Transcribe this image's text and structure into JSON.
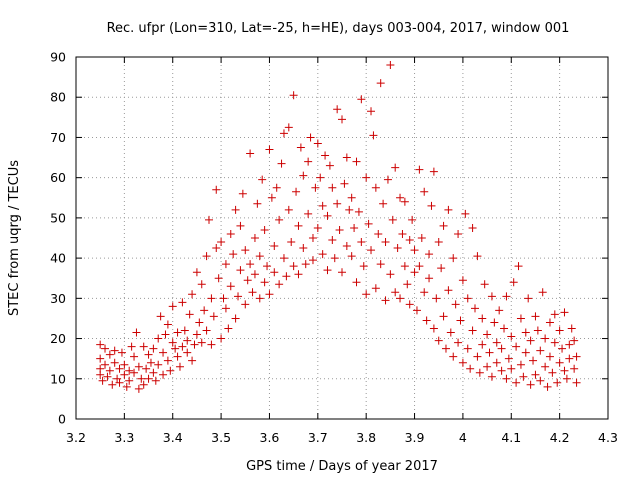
{
  "chart_data": {
    "type": "scatter",
    "title": "Rec. ufpr (Lon=310, Lat=-25, h=HE), days 003-004, 2017, window 001",
    "xlabel": "GPS time / Days of year 2017",
    "ylabel": "STEC from uqrg / TECUs",
    "xlim": [
      3.2,
      4.3
    ],
    "ylim": [
      0,
      90
    ],
    "x_ticks": [
      "3.2",
      "3.3",
      "3.4",
      "3.5",
      "3.6",
      "3.7",
      "3.8",
      "3.9",
      "4",
      "4.1",
      "4.2",
      "4.3"
    ],
    "y_ticks": [
      "0",
      "10",
      "20",
      "30",
      "40",
      "50",
      "60",
      "70",
      "80",
      "90"
    ],
    "grid": true,
    "marker": "+",
    "color": "#cc0000",
    "series": [
      {
        "points": [
          [
            3.25,
            18.5
          ],
          [
            3.25,
            15.0
          ],
          [
            3.25,
            12.5
          ],
          [
            3.25,
            11.0
          ],
          [
            3.255,
            9.5
          ],
          [
            3.26,
            17.5
          ],
          [
            3.26,
            13.5
          ],
          [
            3.265,
            10.5
          ],
          [
            3.27,
            16.0
          ],
          [
            3.27,
            12.0
          ],
          [
            3.275,
            8.5
          ],
          [
            3.28,
            17.0
          ],
          [
            3.28,
            14.0
          ],
          [
            3.285,
            10.0
          ],
          [
            3.29,
            12.5
          ],
          [
            3.29,
            9.0
          ],
          [
            3.295,
            16.5
          ],
          [
            3.3,
            11.0
          ],
          [
            3.3,
            13.5
          ],
          [
            3.305,
            8.0
          ],
          [
            3.31,
            12.0
          ],
          [
            3.31,
            9.5
          ],
          [
            3.315,
            18.0
          ],
          [
            3.32,
            15.5
          ],
          [
            3.32,
            11.5
          ],
          [
            3.325,
            21.5
          ],
          [
            3.33,
            7.5
          ],
          [
            3.33,
            13.0
          ],
          [
            3.335,
            10.0
          ],
          [
            3.34,
            18.0
          ],
          [
            3.34,
            8.5
          ],
          [
            3.345,
            12.5
          ],
          [
            3.35,
            16.0
          ],
          [
            3.35,
            10.0
          ],
          [
            3.355,
            14.0
          ],
          [
            3.36,
            17.5
          ],
          [
            3.36,
            11.5
          ],
          [
            3.365,
            9.5
          ],
          [
            3.37,
            20.0
          ],
          [
            3.37,
            13.5
          ],
          [
            3.375,
            25.5
          ],
          [
            3.38,
            11.0
          ],
          [
            3.38,
            16.5
          ],
          [
            3.385,
            21.0
          ],
          [
            3.39,
            14.5
          ],
          [
            3.39,
            23.5
          ],
          [
            3.395,
            12.0
          ],
          [
            3.4,
            19.0
          ],
          [
            3.4,
            28.0
          ],
          [
            3.405,
            17.5
          ],
          [
            3.41,
            15.5
          ],
          [
            3.41,
            21.5
          ],
          [
            3.415,
            13.0
          ],
          [
            3.42,
            18.0
          ],
          [
            3.42,
            29.0
          ],
          [
            3.425,
            22.0
          ],
          [
            3.43,
            16.5
          ],
          [
            3.43,
            19.5
          ],
          [
            3.435,
            26.0
          ],
          [
            3.44,
            14.5
          ],
          [
            3.44,
            31.0
          ],
          [
            3.445,
            18.5
          ],
          [
            3.45,
            36.5
          ],
          [
            3.45,
            21.0
          ],
          [
            3.455,
            24.0
          ],
          [
            3.46,
            19.0
          ],
          [
            3.46,
            33.5
          ],
          [
            3.465,
            27.0
          ],
          [
            3.47,
            40.5
          ],
          [
            3.47,
            22.0
          ],
          [
            3.475,
            49.5
          ],
          [
            3.48,
            18.5
          ],
          [
            3.48,
            30.0
          ],
          [
            3.485,
            25.5
          ],
          [
            3.49,
            57.0
          ],
          [
            3.49,
            42.5
          ],
          [
            3.495,
            35.0
          ],
          [
            3.5,
            20.0
          ],
          [
            3.5,
            44.0
          ],
          [
            3.505,
            30.0
          ],
          [
            3.51,
            27.5
          ],
          [
            3.51,
            38.5
          ],
          [
            3.515,
            22.5
          ],
          [
            3.52,
            46.0
          ],
          [
            3.52,
            33.0
          ],
          [
            3.525,
            41.0
          ],
          [
            3.53,
            25.0
          ],
          [
            3.53,
            52.0
          ],
          [
            3.535,
            30.5
          ],
          [
            3.54,
            48.0
          ],
          [
            3.54,
            37.0
          ],
          [
            3.545,
            56.0
          ],
          [
            3.55,
            28.5
          ],
          [
            3.55,
            42.0
          ],
          [
            3.555,
            34.5
          ],
          [
            3.56,
            66.0
          ],
          [
            3.56,
            38.5
          ],
          [
            3.565,
            31.5
          ],
          [
            3.57,
            45.0
          ],
          [
            3.57,
            36.0
          ],
          [
            3.575,
            53.5
          ],
          [
            3.58,
            30.0
          ],
          [
            3.58,
            40.5
          ],
          [
            3.585,
            59.5
          ],
          [
            3.59,
            34.0
          ],
          [
            3.59,
            47.0
          ],
          [
            3.595,
            38.0
          ],
          [
            3.6,
            67.0
          ],
          [
            3.6,
            31.0
          ],
          [
            3.605,
            55.0
          ],
          [
            3.61,
            43.0
          ],
          [
            3.61,
            36.5
          ],
          [
            3.615,
            57.5
          ],
          [
            3.62,
            33.5
          ],
          [
            3.62,
            49.5
          ],
          [
            3.625,
            63.5
          ],
          [
            3.63,
            40.0
          ],
          [
            3.63,
            71.0
          ],
          [
            3.635,
            35.5
          ],
          [
            3.64,
            52.0
          ],
          [
            3.64,
            72.5
          ],
          [
            3.645,
            44.0
          ],
          [
            3.65,
            38.0
          ],
          [
            3.65,
            80.5
          ],
          [
            3.655,
            56.5
          ],
          [
            3.66,
            36.0
          ],
          [
            3.66,
            48.0
          ],
          [
            3.665,
            67.5
          ],
          [
            3.67,
            42.5
          ],
          [
            3.67,
            60.5
          ],
          [
            3.675,
            38.5
          ],
          [
            3.68,
            64.0
          ],
          [
            3.68,
            51.0
          ],
          [
            3.685,
            70.0
          ],
          [
            3.69,
            45.0
          ],
          [
            3.69,
            39.5
          ],
          [
            3.695,
            57.5
          ],
          [
            3.7,
            68.5
          ],
          [
            3.7,
            47.5
          ],
          [
            3.705,
            60.0
          ],
          [
            3.71,
            41.0
          ],
          [
            3.71,
            53.0
          ],
          [
            3.715,
            65.5
          ],
          [
            3.72,
            37.0
          ],
          [
            3.72,
            50.5
          ],
          [
            3.725,
            63.0
          ],
          [
            3.73,
            44.5
          ],
          [
            3.73,
            57.5
          ],
          [
            3.735,
            40.0
          ],
          [
            3.74,
            77.0
          ],
          [
            3.74,
            53.5
          ],
          [
            3.745,
            47.0
          ],
          [
            3.75,
            36.5
          ],
          [
            3.75,
            74.5
          ],
          [
            3.755,
            58.5
          ],
          [
            3.76,
            43.0
          ],
          [
            3.76,
            65.0
          ],
          [
            3.765,
            52.0
          ],
          [
            3.77,
            40.5
          ],
          [
            3.77,
            55.0
          ],
          [
            3.775,
            47.5
          ],
          [
            3.78,
            64.0
          ],
          [
            3.78,
            34.0
          ],
          [
            3.785,
            51.5
          ],
          [
            3.79,
            44.0
          ],
          [
            3.79,
            79.5
          ],
          [
            3.795,
            38.0
          ],
          [
            3.8,
            60.0
          ],
          [
            3.8,
            31.0
          ],
          [
            3.805,
            48.5
          ],
          [
            3.81,
            76.5
          ],
          [
            3.81,
            42.0
          ],
          [
            3.815,
            70.5
          ],
          [
            3.82,
            57.5
          ],
          [
            3.82,
            32.5
          ],
          [
            3.825,
            46.0
          ],
          [
            3.83,
            38.5
          ],
          [
            3.83,
            83.5
          ],
          [
            3.835,
            53.5
          ],
          [
            3.84,
            29.5
          ],
          [
            3.84,
            44.0
          ],
          [
            3.845,
            59.5
          ],
          [
            3.85,
            88.0
          ],
          [
            3.85,
            36.0
          ],
          [
            3.855,
            49.5
          ],
          [
            3.86,
            31.5
          ],
          [
            3.86,
            62.5
          ],
          [
            3.865,
            42.5
          ],
          [
            3.87,
            55.0
          ],
          [
            3.87,
            30.0
          ],
          [
            3.875,
            46.0
          ],
          [
            3.88,
            38.0
          ],
          [
            3.88,
            54.0
          ],
          [
            3.885,
            33.5
          ],
          [
            3.89,
            44.5
          ],
          [
            3.89,
            28.5
          ],
          [
            3.895,
            49.5
          ],
          [
            3.9,
            36.5
          ],
          [
            3.9,
            42.0
          ],
          [
            3.905,
            27.0
          ],
          [
            3.91,
            62.0
          ],
          [
            3.91,
            38.0
          ],
          [
            3.915,
            45.0
          ],
          [
            3.92,
            31.5
          ],
          [
            3.92,
            56.5
          ],
          [
            3.925,
            24.5
          ],
          [
            3.93,
            41.0
          ],
          [
            3.93,
            35.0
          ],
          [
            3.935,
            53.0
          ],
          [
            3.94,
            22.5
          ],
          [
            3.94,
            61.5
          ],
          [
            3.945,
            30.0
          ],
          [
            3.95,
            44.0
          ],
          [
            3.95,
            19.5
          ],
          [
            3.955,
            37.5
          ],
          [
            3.96,
            25.5
          ],
          [
            3.96,
            48.0
          ],
          [
            3.965,
            17.5
          ],
          [
            3.97,
            32.0
          ],
          [
            3.97,
            52.0
          ],
          [
            3.975,
            21.5
          ],
          [
            3.98,
            40.0
          ],
          [
            3.98,
            15.5
          ],
          [
            3.985,
            28.5
          ],
          [
            3.99,
            19.0
          ],
          [
            3.99,
            46.0
          ],
          [
            3.995,
            24.5
          ],
          [
            4.0,
            14.0
          ],
          [
            4.0,
            34.5
          ],
          [
            4.005,
            51.0
          ],
          [
            4.01,
            17.5
          ],
          [
            4.01,
            30.0
          ],
          [
            4.015,
            12.5
          ],
          [
            4.02,
            47.5
          ],
          [
            4.02,
            22.0
          ],
          [
            4.025,
            27.5
          ],
          [
            4.03,
            15.5
          ],
          [
            4.03,
            40.5
          ],
          [
            4.035,
            11.5
          ],
          [
            4.04,
            25.0
          ],
          [
            4.04,
            18.5
          ],
          [
            4.045,
            33.5
          ],
          [
            4.05,
            13.0
          ],
          [
            4.05,
            21.0
          ],
          [
            4.055,
            16.5
          ],
          [
            4.06,
            30.5
          ],
          [
            4.06,
            10.5
          ],
          [
            4.065,
            24.0
          ],
          [
            4.07,
            19.0
          ],
          [
            4.07,
            14.0
          ],
          [
            4.075,
            27.0
          ],
          [
            4.08,
            12.0
          ],
          [
            4.08,
            17.5
          ],
          [
            4.085,
            22.5
          ],
          [
            4.09,
            10.0
          ],
          [
            4.09,
            30.5
          ],
          [
            4.095,
            15.0
          ],
          [
            4.1,
            20.5
          ],
          [
            4.1,
            12.5
          ],
          [
            4.105,
            34.0
          ],
          [
            4.11,
            9.0
          ],
          [
            4.11,
            18.0
          ],
          [
            4.115,
            38.0
          ],
          [
            4.12,
            13.5
          ],
          [
            4.12,
            25.0
          ],
          [
            4.125,
            10.5
          ],
          [
            4.13,
            21.5
          ],
          [
            4.13,
            16.5
          ],
          [
            4.135,
            30.0
          ],
          [
            4.14,
            8.5
          ],
          [
            4.14,
            19.5
          ],
          [
            4.145,
            14.5
          ],
          [
            4.15,
            25.5
          ],
          [
            4.15,
            11.0
          ],
          [
            4.155,
            22.0
          ],
          [
            4.16,
            17.0
          ],
          [
            4.16,
            9.5
          ],
          [
            4.165,
            31.5
          ],
          [
            4.17,
            13.0
          ],
          [
            4.17,
            20.0
          ],
          [
            4.175,
            8.0
          ],
          [
            4.18,
            24.0
          ],
          [
            4.18,
            15.5
          ],
          [
            4.185,
            11.5
          ],
          [
            4.19,
            19.0
          ],
          [
            4.19,
            26.0
          ],
          [
            4.195,
            9.0
          ],
          [
            4.2,
            14.0
          ],
          [
            4.2,
            22.0
          ],
          [
            4.205,
            17.5
          ],
          [
            4.21,
            12.0
          ],
          [
            4.21,
            26.5
          ],
          [
            4.215,
            10.0
          ],
          [
            4.22,
            18.5
          ],
          [
            4.22,
            15.0
          ],
          [
            4.225,
            22.5
          ],
          [
            4.23,
            12.5
          ],
          [
            4.23,
            19.5
          ],
          [
            4.235,
            9.0
          ],
          [
            4.235,
            15.5
          ]
        ]
      }
    ]
  }
}
